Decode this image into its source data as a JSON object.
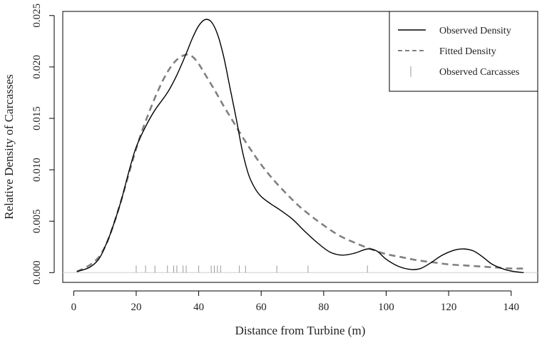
{
  "chart_data": {
    "type": "line",
    "title": "",
    "xlabel": "Distance from Turbine (m)",
    "ylabel": "Relative Density of Carcasses",
    "xlim": [
      0,
      145
    ],
    "ylim": [
      0,
      0.025
    ],
    "x_ticks": [
      0,
      20,
      40,
      60,
      80,
      100,
      120,
      140
    ],
    "y_ticks": [
      0.0,
      0.005,
      0.01,
      0.015,
      0.02,
      0.025
    ],
    "x_tick_labels": [
      "0",
      "20",
      "40",
      "60",
      "80",
      "100",
      "120",
      "140"
    ],
    "y_tick_labels": [
      "0.000",
      "0.005",
      "0.010",
      "0.015",
      "0.020",
      "0.025"
    ],
    "legend_position": "top-right",
    "grid": false,
    "series": [
      {
        "name": "Observed Density",
        "style": "solid",
        "color": "#000000",
        "x": [
          1,
          5,
          8,
          10,
          12,
          15,
          18,
          20,
          23,
          26,
          30,
          33,
          36,
          38,
          40,
          42,
          44,
          46,
          48,
          50,
          52,
          54,
          56,
          58,
          60,
          63,
          66,
          70,
          74,
          78,
          82,
          86,
          90,
          94,
          97,
          100,
          104,
          108,
          111,
          114,
          118,
          122,
          125,
          128,
          131,
          134,
          138,
          141,
          144
        ],
        "y": [
          0.0001,
          0.0005,
          0.0013,
          0.0025,
          0.004,
          0.0068,
          0.0102,
          0.0122,
          0.0142,
          0.0158,
          0.0175,
          0.0192,
          0.0213,
          0.0228,
          0.024,
          0.0246,
          0.0244,
          0.0232,
          0.021,
          0.018,
          0.015,
          0.0118,
          0.0095,
          0.0082,
          0.0074,
          0.0067,
          0.0061,
          0.0052,
          0.004,
          0.0029,
          0.002,
          0.0017,
          0.0019,
          0.0023,
          0.0021,
          0.0013,
          0.0006,
          0.0003,
          0.0004,
          0.0009,
          0.0017,
          0.0022,
          0.0023,
          0.0021,
          0.0015,
          0.0008,
          0.0003,
          0.0001,
          0.0
        ]
      },
      {
        "name": "Fitted Density",
        "style": "dashed",
        "color": "#808080",
        "x": [
          1,
          5,
          8,
          10,
          12,
          15,
          18,
          21,
          24,
          27,
          30,
          33,
          36,
          38,
          40,
          42,
          45,
          48,
          51,
          54,
          57,
          60,
          64,
          68,
          72,
          76,
          80,
          85,
          90,
          95,
          100,
          105,
          110,
          115,
          120,
          125,
          130,
          135,
          140,
          144
        ],
        "y": [
          0.0001,
          0.0007,
          0.0015,
          0.0025,
          0.004,
          0.0068,
          0.01,
          0.013,
          0.0155,
          0.0177,
          0.0195,
          0.0207,
          0.0212,
          0.021,
          0.0203,
          0.0193,
          0.0178,
          0.0162,
          0.0147,
          0.0132,
          0.0118,
          0.0105,
          0.009,
          0.0077,
          0.0065,
          0.0055,
          0.0046,
          0.0036,
          0.0029,
          0.0023,
          0.0018,
          0.0015,
          0.0012,
          0.001,
          0.0008,
          0.0007,
          0.0006,
          0.0005,
          0.0004,
          0.0004
        ]
      },
      {
        "name": "Observed Carcasses",
        "style": "rug",
        "color": "#9a9a9a",
        "x": [
          20,
          23,
          26,
          30,
          32,
          33,
          35,
          36,
          40,
          44,
          45,
          46,
          47,
          53,
          55,
          65,
          75,
          94
        ]
      }
    ]
  }
}
